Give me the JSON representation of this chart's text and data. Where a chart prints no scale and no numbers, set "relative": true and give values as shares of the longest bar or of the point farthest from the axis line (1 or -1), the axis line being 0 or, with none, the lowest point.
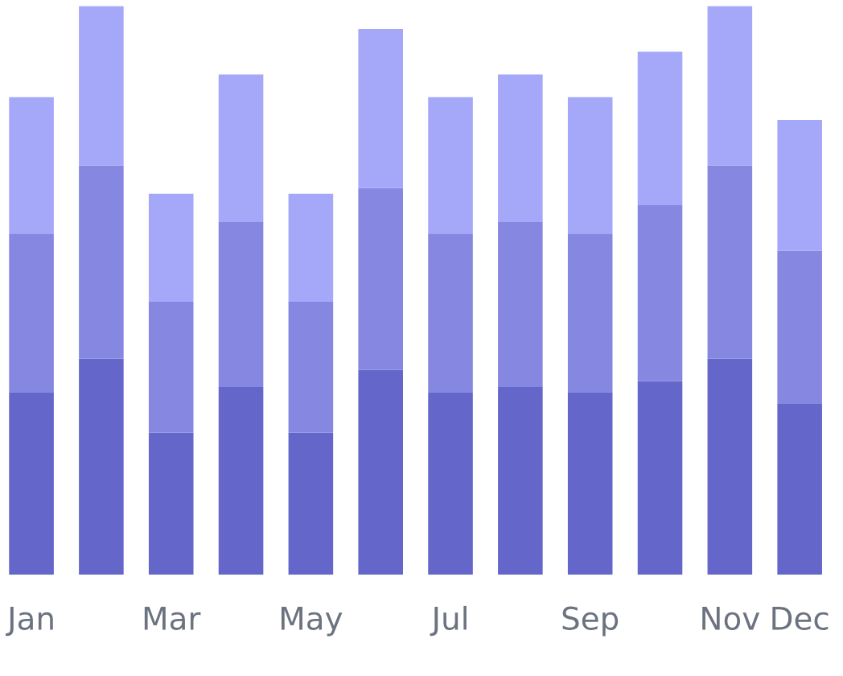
{
  "chart_data": {
    "type": "bar",
    "stacked": true,
    "relative": true,
    "categories": [
      "Jan",
      null,
      "Mar",
      null,
      "May",
      null,
      "Jul",
      null,
      "Sep",
      null,
      "Nov",
      "Dec"
    ],
    "series": [
      {
        "color": "#6466c9",
        "values": [
          0.32,
          0.38,
          0.25,
          0.33,
          0.25,
          0.36,
          0.32,
          0.33,
          0.32,
          0.34,
          0.38,
          0.3
        ]
      },
      {
        "color": "#8587e0",
        "values": [
          0.28,
          0.34,
          0.23,
          0.29,
          0.23,
          0.32,
          0.28,
          0.29,
          0.28,
          0.31,
          0.34,
          0.27
        ]
      },
      {
        "color": "#a5a7f8",
        "values": [
          0.24,
          0.28,
          0.19,
          0.26,
          0.19,
          0.28,
          0.24,
          0.26,
          0.24,
          0.27,
          0.28,
          0.23
        ]
      }
    ],
    "grid": false,
    "legend": false
  }
}
